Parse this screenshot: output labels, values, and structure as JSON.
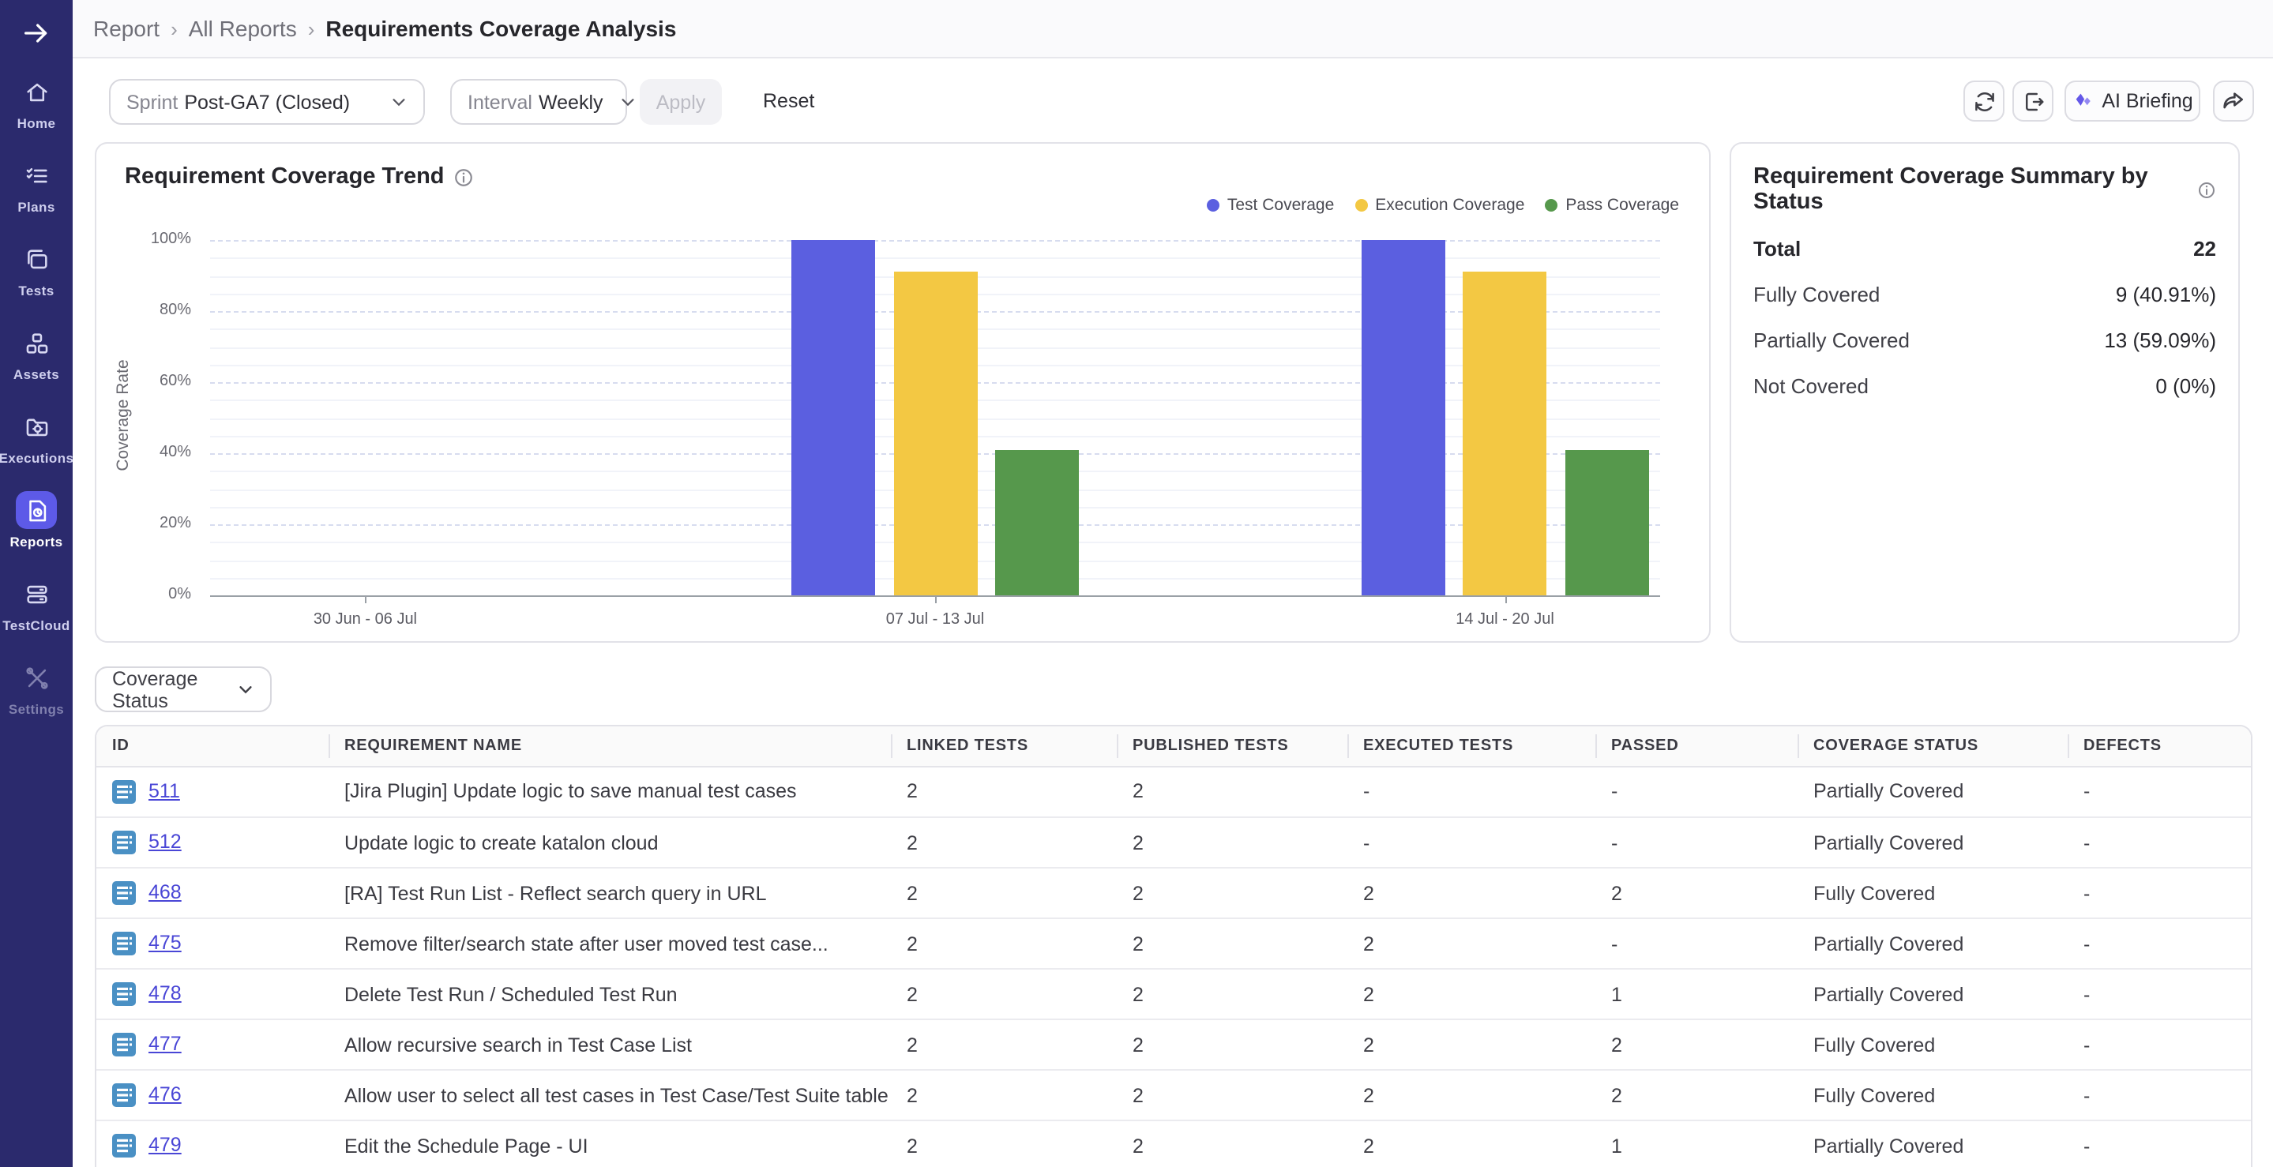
{
  "sidebar": {
    "items": [
      {
        "id": "home",
        "label": "Home",
        "icon": "home-icon",
        "active": false,
        "disabled": false
      },
      {
        "id": "plans",
        "label": "Plans",
        "icon": "plans-icon",
        "active": false,
        "disabled": false
      },
      {
        "id": "tests",
        "label": "Tests",
        "icon": "tests-icon",
        "active": false,
        "disabled": false
      },
      {
        "id": "assets",
        "label": "Assets",
        "icon": "assets-icon",
        "active": false,
        "disabled": false
      },
      {
        "id": "executions",
        "label": "Executions",
        "icon": "executions-icon",
        "active": false,
        "disabled": false
      },
      {
        "id": "reports",
        "label": "Reports",
        "icon": "reports-icon",
        "active": true,
        "disabled": false
      },
      {
        "id": "testcloud",
        "label": "TestCloud",
        "icon": "testcloud-icon",
        "active": false,
        "disabled": false
      },
      {
        "id": "settings",
        "label": "Settings",
        "icon": "settings-icon",
        "active": false,
        "disabled": true
      }
    ]
  },
  "breadcrumb": {
    "items": [
      "Report",
      "All Reports",
      "Requirements Coverage Analysis"
    ],
    "separator": "›"
  },
  "filters": {
    "sprint_label": "Sprint",
    "sprint_value": "Post-GA7 (Closed)",
    "interval_label": "Interval",
    "interval_value": "Weekly",
    "apply_label": "Apply",
    "reset_label": "Reset"
  },
  "actions": {
    "ai_briefing_label": "AI Briefing"
  },
  "chart_card": {
    "title": "Requirement Coverage Trend"
  },
  "chart_data": {
    "type": "bar",
    "title": "Requirement Coverage Trend",
    "ylabel": "Coverage Rate",
    "categories": [
      "30 Jun - 06 Jul",
      "07 Jul - 13 Jul",
      "14 Jul - 20 Jul"
    ],
    "series": [
      {
        "name": "Test Coverage",
        "color": "#5b5fe0",
        "values": [
          0,
          100,
          100
        ]
      },
      {
        "name": "Execution Coverage",
        "color": "#f3c843",
        "values": [
          0,
          90.91,
          90.91
        ]
      },
      {
        "name": "Pass Coverage",
        "color": "#56984c",
        "values": [
          0,
          40.91,
          40.91
        ]
      }
    ],
    "y_ticks": [
      "0%",
      "20%",
      "40%",
      "60%",
      "80%",
      "100%"
    ],
    "ylim": [
      0,
      100
    ],
    "grid": true,
    "legend_position": "top-right"
  },
  "summary": {
    "title": "Requirement Coverage Summary by Status",
    "rows": [
      {
        "label": "Total",
        "value": "22",
        "bold": true
      },
      {
        "label": "Fully Covered",
        "value": "9 (40.91%)",
        "bold": false
      },
      {
        "label": "Partially Covered",
        "value": "13 (59.09%)",
        "bold": false
      },
      {
        "label": "Not Covered",
        "value": "0 (0%)",
        "bold": false
      }
    ]
  },
  "table_controls": {
    "coverage_status_label": "Coverage Status"
  },
  "table": {
    "columns": [
      "ID",
      "REQUIREMENT NAME",
      "LINKED TESTS",
      "PUBLISHED TESTS",
      "EXECUTED TESTS",
      "PASSED",
      "COVERAGE STATUS",
      "DEFECTS"
    ],
    "rows": [
      {
        "id": "511",
        "name": "[Jira Plugin] Update logic to save manual test cases",
        "linked": "2",
        "published": "2",
        "executed": "-",
        "passed": "-",
        "coverage": "Partially Covered",
        "defects": "-"
      },
      {
        "id": "512",
        "name": "Update logic to create katalon cloud",
        "linked": "2",
        "published": "2",
        "executed": "-",
        "passed": "-",
        "coverage": "Partially Covered",
        "defects": "-"
      },
      {
        "id": "468",
        "name": "[RA] Test Run List - Reflect search query in URL",
        "linked": "2",
        "published": "2",
        "executed": "2",
        "passed": "2",
        "coverage": "Fully Covered",
        "defects": "-"
      },
      {
        "id": "475",
        "name": "Remove filter/search state after user moved test case...",
        "linked": "2",
        "published": "2",
        "executed": "2",
        "passed": "-",
        "coverage": "Partially Covered",
        "defects": "-"
      },
      {
        "id": "478",
        "name": "Delete Test Run / Scheduled Test Run",
        "linked": "2",
        "published": "2",
        "executed": "2",
        "passed": "1",
        "coverage": "Partially Covered",
        "defects": "-"
      },
      {
        "id": "477",
        "name": "Allow recursive search in Test Case List",
        "linked": "2",
        "published": "2",
        "executed": "2",
        "passed": "2",
        "coverage": "Fully Covered",
        "defects": "-"
      },
      {
        "id": "476",
        "name": "Allow user to select all test cases in Test Case/Test Suite table",
        "linked": "2",
        "published": "2",
        "executed": "2",
        "passed": "2",
        "coverage": "Fully Covered",
        "defects": "-"
      },
      {
        "id": "479",
        "name": "Edit the Schedule Page - UI",
        "linked": "2",
        "published": "2",
        "executed": "2",
        "passed": "1",
        "coverage": "Partially Covered",
        "defects": "-"
      }
    ]
  },
  "colors": {
    "sidebar_bg": "#2b2a6d",
    "sidebar_active": "#5d5ae8",
    "link": "#4946d6",
    "id_icon": "#4a90c4",
    "ai_sparkle": "#6458e8"
  }
}
